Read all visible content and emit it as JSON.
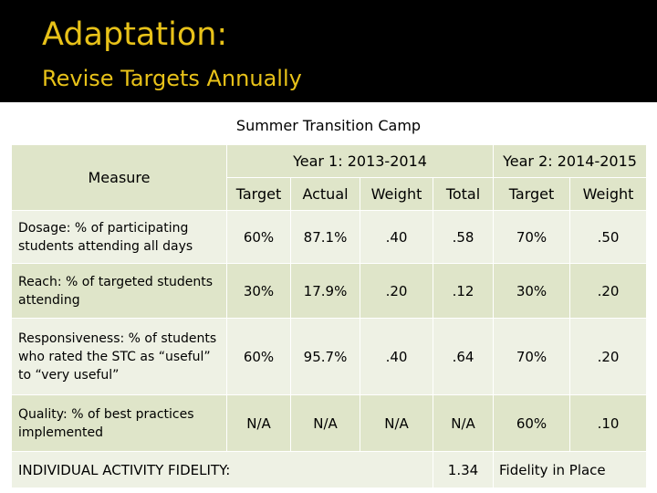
{
  "slide": {
    "title": "Adaptation:",
    "subtitle": "Revise Targets Annually",
    "caption": "Summer Transition Camp"
  },
  "table": {
    "measure_header": "Measure",
    "year1_label": "Year 1: 2013-2014",
    "year2_label": "Year 2: 2014-2015",
    "year1_columns": [
      "Target",
      "Actual",
      "Weight",
      "Total"
    ],
    "year2_columns": [
      "Target",
      "Weight"
    ],
    "rows": [
      {
        "name": "Dosage:",
        "description": "% of participating students attending all days",
        "y1_target": "60%",
        "y1_actual": "87.1%",
        "y1_weight": ".40",
        "y1_total": ".58",
        "y2_target": "70%",
        "y2_weight": ".50"
      },
      {
        "name": "Reach:",
        "description": "% of targeted students attending",
        "y1_target": "30%",
        "y1_actual": "17.9%",
        "y1_weight": ".20",
        "y1_total": ".12",
        "y2_target": "30%",
        "y2_weight": ".20"
      },
      {
        "name": "Responsiveness:",
        "description": "% of students who rated the STC as “useful” to “very useful”",
        "y1_target": "60%",
        "y1_actual": "95.7%",
        "y1_weight": ".40",
        "y1_total": ".64",
        "y2_target": "70%",
        "y2_weight": ".20"
      },
      {
        "name": "Quality:",
        "description": "% of best practices implemented",
        "y1_target": "N/A",
        "y1_actual": "N/A",
        "y1_weight": "N/A",
        "y1_total": "N/A",
        "y2_target": "60%",
        "y2_weight": ".10"
      }
    ],
    "footer": {
      "label": "INDIVIDUAL ACTIVITY FIDELITY:",
      "total": "1.34",
      "note": "Fidelity in Place"
    }
  }
}
